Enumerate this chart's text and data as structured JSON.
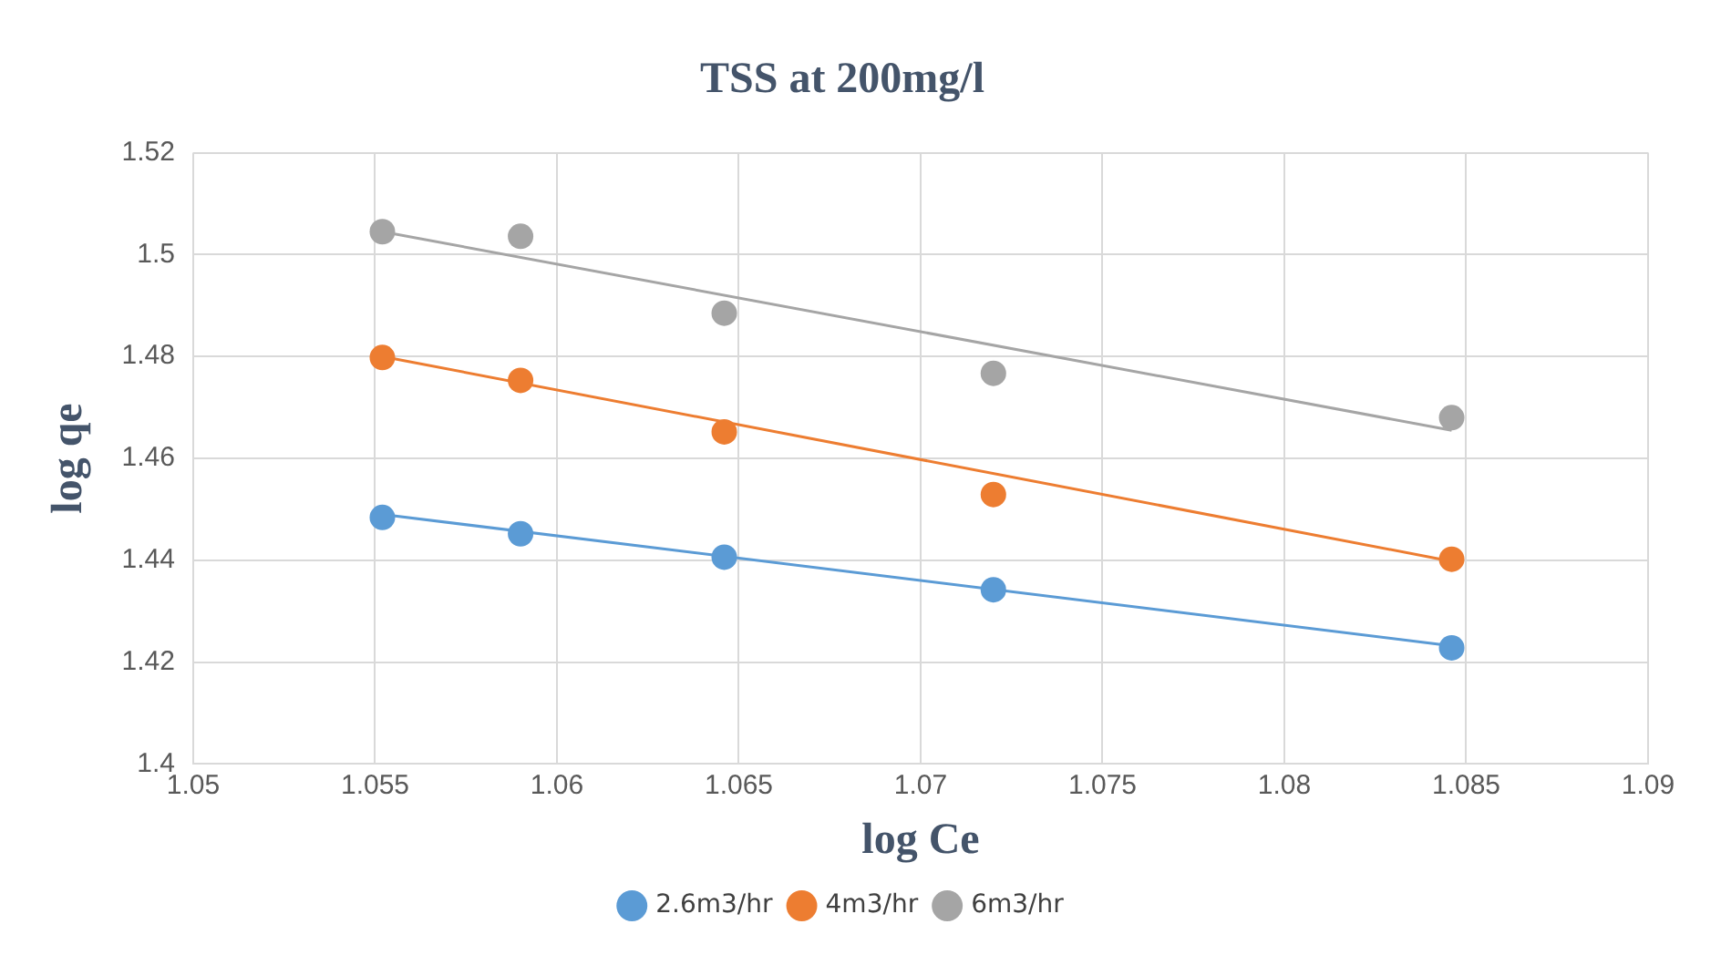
{
  "chart_data": {
    "type": "scatter",
    "title": "TSS at 200mg/l",
    "xlabel": "log Ce",
    "ylabel": "log qe",
    "xlim": [
      1.05,
      1.09
    ],
    "xticks": [
      1.05,
      1.055,
      1.06,
      1.065,
      1.07,
      1.075,
      1.08,
      1.085,
      1.09
    ],
    "ylim": [
      1.4,
      1.52
    ],
    "yticks": [
      1.4,
      1.42,
      1.44,
      1.46,
      1.48,
      1.5,
      1.52
    ],
    "grid": true,
    "legend": "bottom",
    "marker": "circle",
    "series": [
      {
        "name": "2.6m3/hr",
        "color": "#5b9bd5",
        "x": [
          1.0552,
          1.059,
          1.0646,
          1.072,
          1.0846
        ],
        "values": [
          1.4484,
          1.4452,
          1.4406,
          1.4342,
          1.4228
        ]
      },
      {
        "name": "4m3/hr",
        "color": "#ed7d31",
        "x": [
          1.0552,
          1.059,
          1.0646,
          1.072,
          1.0846
        ],
        "values": [
          1.4798,
          1.4753,
          1.4652,
          1.4529,
          1.4402
        ]
      },
      {
        "name": "6m3/hr",
        "color": "#a5a5a5",
        "x": [
          1.0552,
          1.059,
          1.0646,
          1.072,
          1.0846
        ],
        "values": [
          1.5045,
          1.5036,
          1.4885,
          1.4767,
          1.468
        ]
      },
      {
        "type": "line",
        "marker": "none",
        "color": "#5b9bd5",
        "x": [
          1.0552,
          1.0846
        ],
        "values": [
          1.449,
          1.4232
        ]
      },
      {
        "type": "line",
        "marker": "none",
        "color": "#ed7d31",
        "x": [
          1.0552,
          1.0846
        ],
        "values": [
          1.48,
          1.4398
        ]
      },
      {
        "type": "line",
        "marker": "none",
        "color": "#a5a5a5",
        "x": [
          1.0552,
          1.0846
        ],
        "values": [
          1.5045,
          1.4655
        ]
      }
    ]
  }
}
